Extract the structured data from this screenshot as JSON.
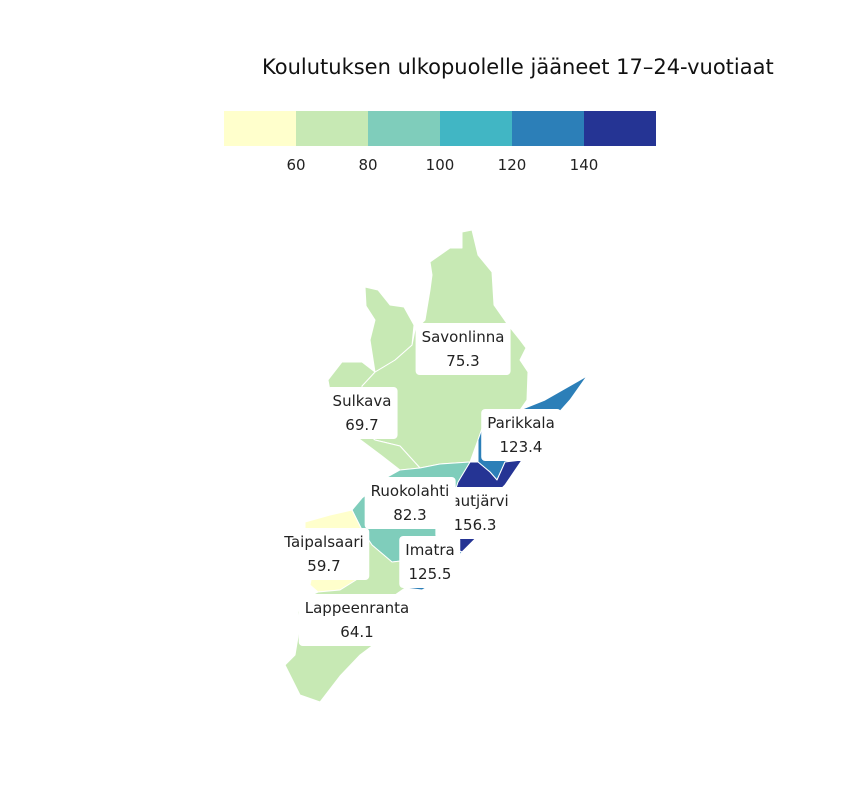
{
  "title": "Koulutuksen ulkopuolelle jääneet 17–24-vuotiaat",
  "legend": {
    "colors": [
      "#ffffcc",
      "#c7e9b4",
      "#7fcdbb",
      "#41b6c4",
      "#2c7fb8",
      "#253494"
    ],
    "ticks": [
      "60",
      "80",
      "100",
      "120",
      "140"
    ]
  },
  "regions": [
    {
      "name": "Savonlinna",
      "value": "75.3",
      "color": "#c7e9b4"
    },
    {
      "name": "Sulkava",
      "value": "69.7",
      "color": "#c7e9b4"
    },
    {
      "name": "Parikkala",
      "value": "123.4",
      "color": "#2c7fb8"
    },
    {
      "name": "Rautjärvi",
      "value": "156.3",
      "color": "#253494"
    },
    {
      "name": "Ruokolahti",
      "value": "82.3",
      "color": "#7fcdbb"
    },
    {
      "name": "Taipalsaari",
      "value": "59.7",
      "color": "#ffffcc"
    },
    {
      "name": "Imatra",
      "value": "125.5",
      "color": "#2c7fb8"
    },
    {
      "name": "Lappeenranta",
      "value": "64.1",
      "color": "#c7e9b4"
    }
  ]
}
